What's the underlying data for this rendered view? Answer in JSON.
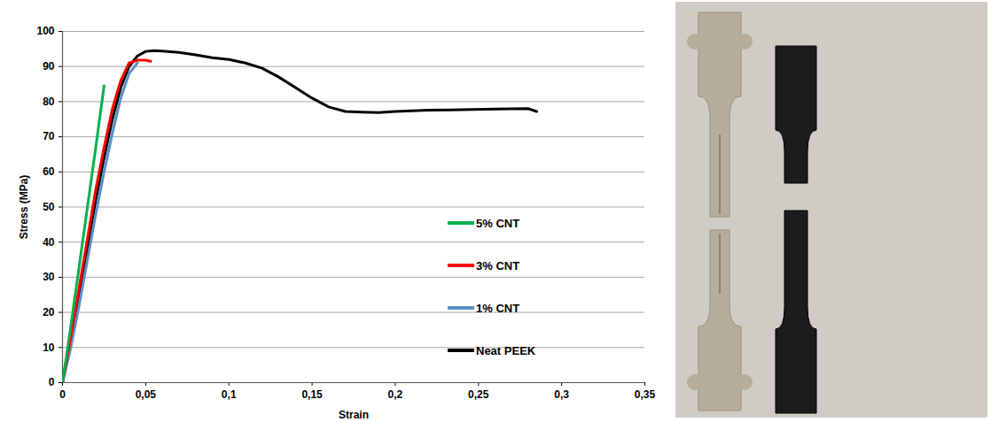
{
  "chart_data": {
    "type": "line",
    "x_label": "Strain",
    "y_label": "Stress (MPa)",
    "xlim": [
      0,
      0.35
    ],
    "xticks": [
      0,
      {
        "value": 0.05,
        "label": "0,05"
      },
      {
        "value": 0.1,
        "label": "0,1"
      },
      {
        "value": 0.15,
        "label": "0,15"
      },
      {
        "value": 0.2,
        "label": "0,2"
      },
      {
        "value": 0.25,
        "label": "0,25"
      },
      {
        "value": 0.3,
        "label": "0,3"
      },
      {
        "value": 0.35,
        "label": "0,35"
      }
    ],
    "ylim": [
      0,
      100
    ],
    "yticks": [
      0,
      10,
      20,
      30,
      40,
      50,
      60,
      70,
      80,
      90,
      100
    ],
    "grid": true,
    "legend": "right",
    "series": [
      {
        "name": "5% CNT",
        "color": "#00b050",
        "x": [
          0,
          0.005,
          0.01,
          0.015,
          0.02,
          0.025
        ],
        "values": [
          0,
          16,
          33,
          50,
          67,
          84.5
        ]
      },
      {
        "name": "3% CNT",
        "color": "#ff0000",
        "x": [
          0,
          0.005,
          0.01,
          0.015,
          0.02,
          0.025,
          0.03,
          0.035,
          0.04,
          0.045,
          0.05,
          0.053
        ],
        "values": [
          0,
          13,
          27,
          41,
          55,
          67,
          78,
          86,
          91,
          91.8,
          91.8,
          91.5
        ]
      },
      {
        "name": "1% CNT",
        "color": "#5b8fc7",
        "x": [
          0,
          0.005,
          0.01,
          0.015,
          0.02,
          0.025,
          0.03,
          0.035,
          0.04,
          0.045
        ],
        "values": [
          0,
          10,
          22,
          35,
          48,
          60,
          71,
          81,
          88,
          91
        ]
      },
      {
        "name": "Neat PEEK",
        "color": "#000000",
        "x": [
          0,
          0.005,
          0.01,
          0.015,
          0.02,
          0.025,
          0.03,
          0.035,
          0.04,
          0.045,
          0.05,
          0.055,
          0.06,
          0.07,
          0.08,
          0.09,
          0.1,
          0.11,
          0.12,
          0.13,
          0.14,
          0.15,
          0.16,
          0.17,
          0.18,
          0.19,
          0.2,
          0.22,
          0.24,
          0.26,
          0.28,
          0.285
        ],
        "values": [
          0,
          12,
          25,
          38,
          52,
          64,
          75,
          84,
          90,
          93,
          94.3,
          94.5,
          94.4,
          94,
          93.3,
          92.5,
          92,
          91,
          89.5,
          87,
          84,
          81,
          78.5,
          77.2,
          77,
          76.9,
          77.2,
          77.6,
          77.7,
          77.9,
          78,
          77.2
        ]
      }
    ]
  }
}
